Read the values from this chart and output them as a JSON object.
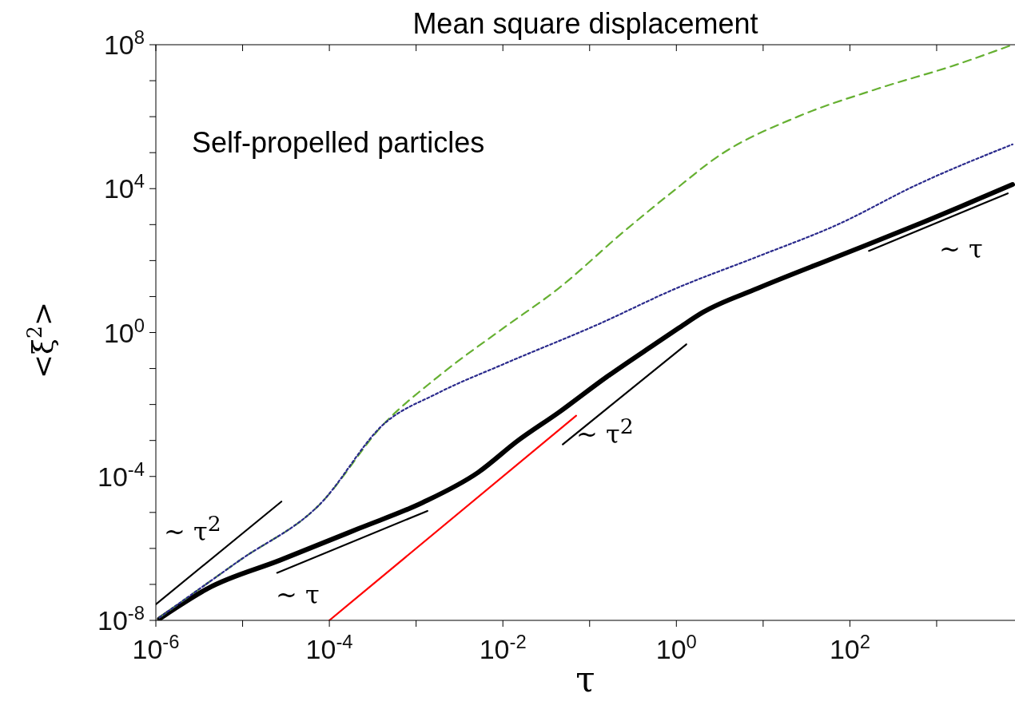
{
  "chart_data": {
    "type": "line",
    "title": "Mean square displacement",
    "xlabel": "τ",
    "ylabel": "<ξ$^{2}$>",
    "log": "xy",
    "xlim": [
      1e-06,
      8000
    ],
    "ylim": [
      1e-08,
      100000000.0
    ],
    "xticks": [
      {
        "value": 1e-06,
        "label": "10$^{-6}$"
      },
      {
        "value": 1e-05,
        "label": null
      },
      {
        "value": 0.0001,
        "label": "10$^{-4}$"
      },
      {
        "value": 0.001,
        "label": null
      },
      {
        "value": 0.01,
        "label": "10$^{-2}$"
      },
      {
        "value": 0.1,
        "label": null
      },
      {
        "value": 1,
        "label": "10$^{0}$"
      },
      {
        "value": 10,
        "label": null
      },
      {
        "value": 100,
        "label": "10$^{2}$"
      },
      {
        "value": 1000,
        "label": null
      }
    ],
    "yticks": [
      {
        "value": 1e-08,
        "label": "10$^{-8}$"
      },
      {
        "value": 1e-07,
        "label": null
      },
      {
        "value": 1e-06,
        "label": null
      },
      {
        "value": 1e-05,
        "label": null
      },
      {
        "value": 0.0001,
        "label": "10$^{-4}$"
      },
      {
        "value": 0.001,
        "label": null
      },
      {
        "value": 0.01,
        "label": null
      },
      {
        "value": 0.1,
        "label": null
      },
      {
        "value": 1,
        "label": "10$^{0}$"
      },
      {
        "value": 10,
        "label": null
      },
      {
        "value": 100,
        "label": null
      },
      {
        "value": 1000,
        "label": null
      },
      {
        "value": 10000.0,
        "label": "10$^{4}$"
      },
      {
        "value": 100000.0,
        "label": null
      },
      {
        "value": 1000000.0,
        "label": null
      },
      {
        "value": 10000000.0,
        "label": null
      },
      {
        "value": 100000000.0,
        "label": "10$^{8}$"
      }
    ],
    "series": [
      {
        "color": "#000000",
        "line_style": "solid",
        "x": [
          1.1e-06,
          4e-06,
          2.7e-05,
          0.00022,
          0.0012,
          0.0052,
          0.015,
          0.044,
          0.16,
          0.56,
          1.05,
          2,
          8.7,
          72,
          600,
          7500
        ],
        "values": [
          1.1e-08,
          7.8e-08,
          4.7e-07,
          3.6e-06,
          1.9e-05,
          0.00013,
          0.001,
          0.006,
          0.06,
          0.47,
          1.3,
          3.6,
          17,
          130,
          1000,
          13000
        ]
      },
      {
        "color": "#ff0000",
        "line_style": "solid",
        "x": [
          0.0001,
          0.07
        ],
        "values": [
          1e-08,
          0.0049
        ]
      },
      {
        "color": "#66b032",
        "line_style": "dashed",
        "x": [
          1.1e-06,
          9.3e-06,
          7.8e-05,
          0.00042,
          0.0018,
          0.01,
          0.044,
          0.24,
          1,
          3,
          25,
          210,
          1700,
          7500
        ],
        "values": [
          1.2e-08,
          4.7e-07,
          1.7e-05,
          0.0028,
          0.06,
          1.3,
          17,
          600,
          10000.0,
          78000.0,
          1000000.0,
          6000000.0,
          28000000.0,
          100000000.0
        ]
      },
      {
        "color": "#2a2a8c",
        "line_style": "dotted",
        "x": [
          1.1e-06,
          9.3e-06,
          7.8e-05,
          0.00042,
          0.0018,
          0.01,
          0.126,
          1,
          8.7,
          72,
          600,
          7500
        ],
        "values": [
          1.2e-08,
          4.7e-07,
          1.7e-05,
          0.0028,
          0.021,
          0.13,
          1.7,
          17,
          130,
          1000,
          13000.0,
          170000.0
        ]
      },
      {
        "color": "#000000",
        "line_style": "solid",
        "x": [
          1e-06,
          2.8e-05
        ],
        "values": [
          2.8e-08,
          2e-05
        ]
      },
      {
        "color": "#000000",
        "line_style": "solid",
        "x": [
          2.5e-05,
          0.00135
        ],
        "values": [
          2.1e-07,
          1.1e-05
        ]
      },
      {
        "color": "#000000",
        "line_style": "solid",
        "x": [
          0.049,
          1.3
        ],
        "values": [
          0.00078,
          0.47
        ]
      },
      {
        "color": "#000000",
        "line_style": "solid",
        "x": [
          166,
          6600
        ],
        "values": [
          186,
          7400
        ]
      }
    ],
    "annotations": [
      "Self-propelled particles",
      "~ τ$^{2}$",
      "~ τ",
      "~ τ$^{2}$",
      "~ τ"
    ]
  }
}
